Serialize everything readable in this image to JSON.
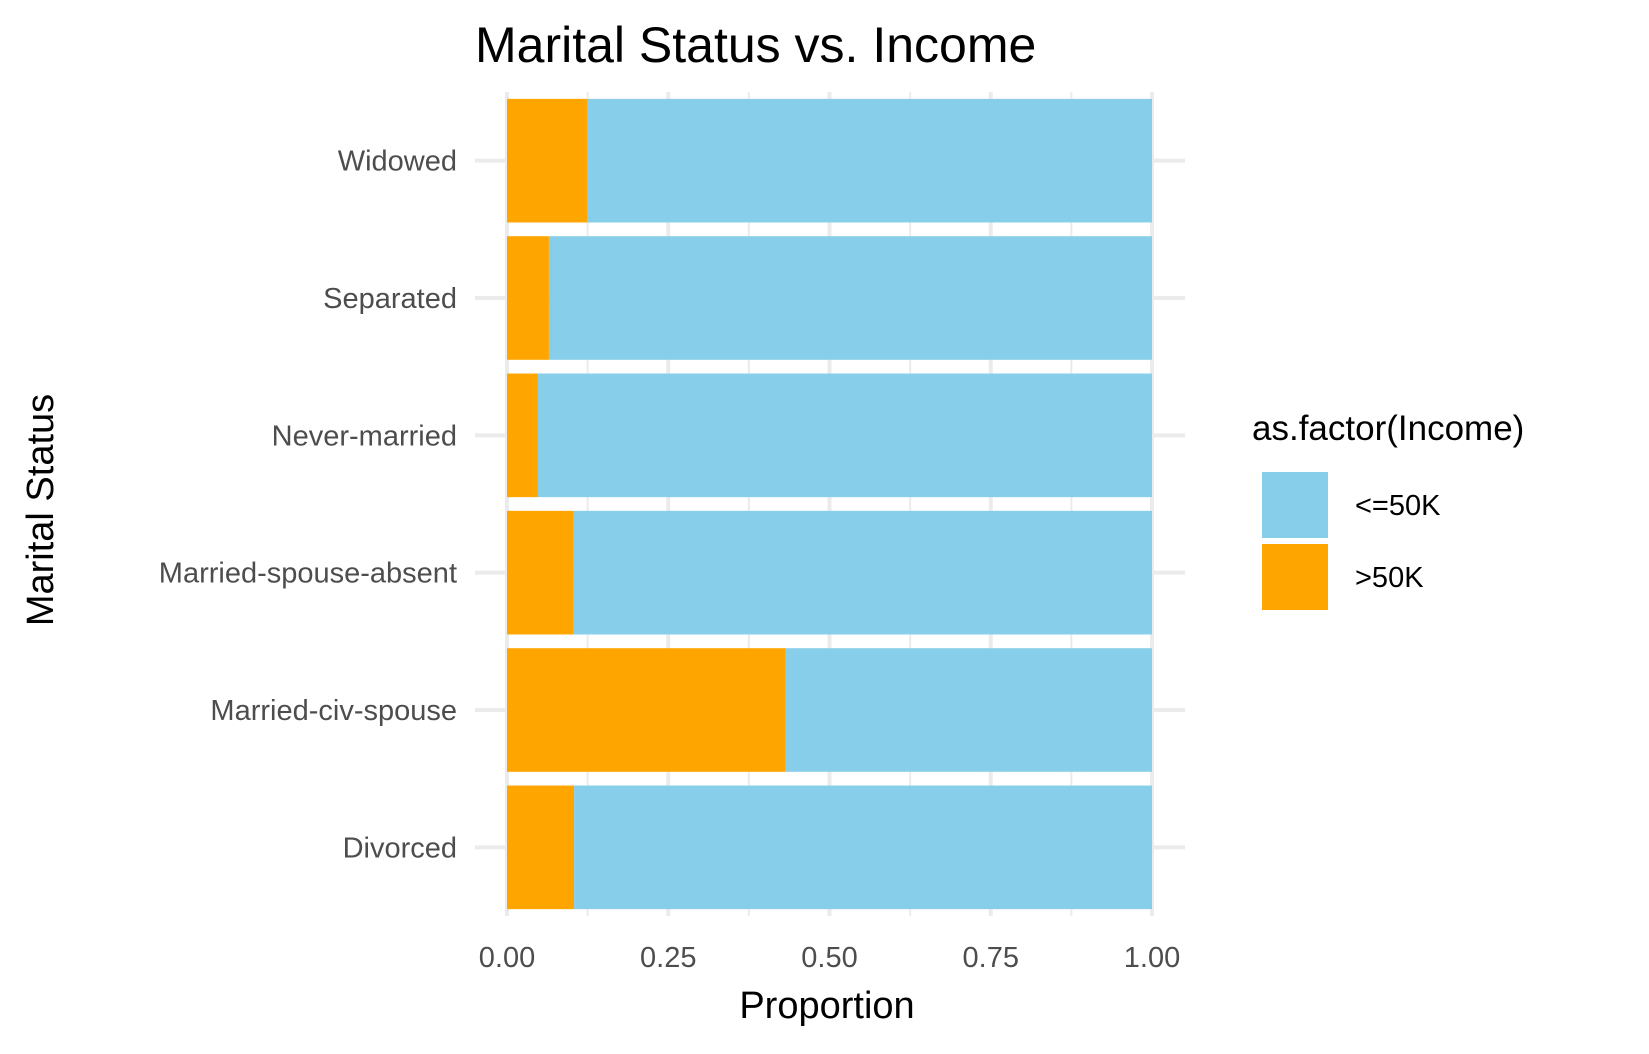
{
  "chart_data": {
    "type": "bar",
    "orientation": "horizontal",
    "stacked": true,
    "title": "Marital Status vs. Income",
    "xlabel": "Proportion",
    "ylabel": "Marital Status",
    "xlim": [
      0,
      1
    ],
    "x_ticks": [
      "0.00",
      "0.25",
      "0.50",
      "0.75",
      "1.00"
    ],
    "x_tick_values": [
      0,
      0.25,
      0.5,
      0.75,
      1
    ],
    "categories": [
      "Divorced",
      "Married-civ-spouse",
      "Married-spouse-absent",
      "Never-married",
      "Separated",
      "Widowed"
    ],
    "series": [
      {
        "name": ">50K",
        "color": "#FFA500",
        "values": [
          0.104,
          0.432,
          0.103,
          0.048,
          0.065,
          0.124
        ]
      },
      {
        "name": "<=50K",
        "color": "#87CEEB",
        "values": [
          0.896,
          0.568,
          0.897,
          0.952,
          0.935,
          0.876
        ]
      }
    ],
    "legend": {
      "title": "as.factor(Income)",
      "position": "right",
      "entries": [
        {
          "label": "<=50K",
          "color": "#87CEEB"
        },
        {
          "label": ">50K",
          "color": "#FFA500"
        }
      ]
    },
    "grid": true,
    "theme": "minimal"
  }
}
